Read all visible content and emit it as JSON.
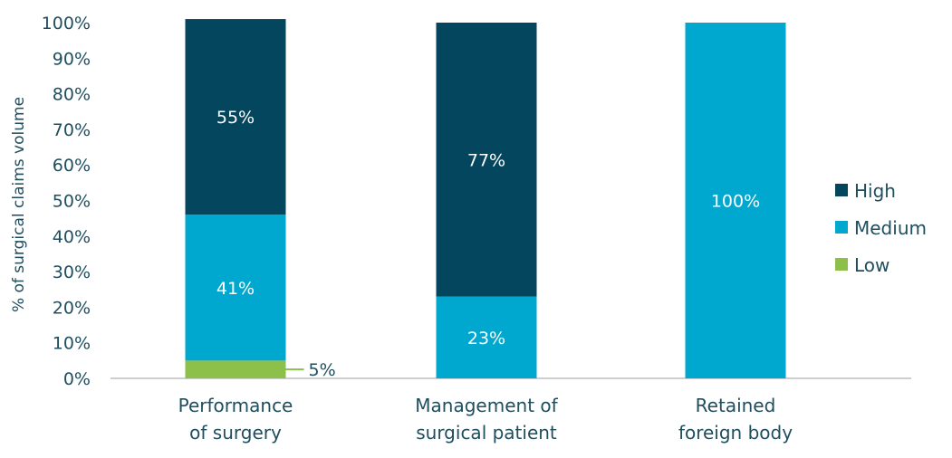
{
  "chart_data": {
    "type": "bar",
    "stacked": true,
    "categories": [
      [
        "Performance",
        "of surgery"
      ],
      [
        "Management of",
        "surgical patient"
      ],
      [
        "Retained",
        "foreign body"
      ]
    ],
    "series": [
      {
        "name": "Low",
        "color": "#8dc04a",
        "values": [
          5,
          0,
          0
        ],
        "labels": [
          "5%",
          "",
          ""
        ]
      },
      {
        "name": "Medium",
        "color": "#00a7cf",
        "values": [
          41,
          23,
          100
        ],
        "labels": [
          "41%",
          "23%",
          "100%"
        ]
      },
      {
        "name": "High",
        "color": "#03465e",
        "values": [
          55,
          77,
          0
        ],
        "labels": [
          "55%",
          "77%",
          ""
        ]
      }
    ],
    "legend_order": [
      "High",
      "Medium",
      "Low"
    ],
    "ylabel": "% of surgical claims volume",
    "ylim": [
      0,
      100
    ],
    "yticks": [
      "0%",
      "10%",
      "20%",
      "30%",
      "40%",
      "50%",
      "60%",
      "70%",
      "80%",
      "90%",
      "100%"
    ],
    "legend_position": "right",
    "grid": false
  }
}
